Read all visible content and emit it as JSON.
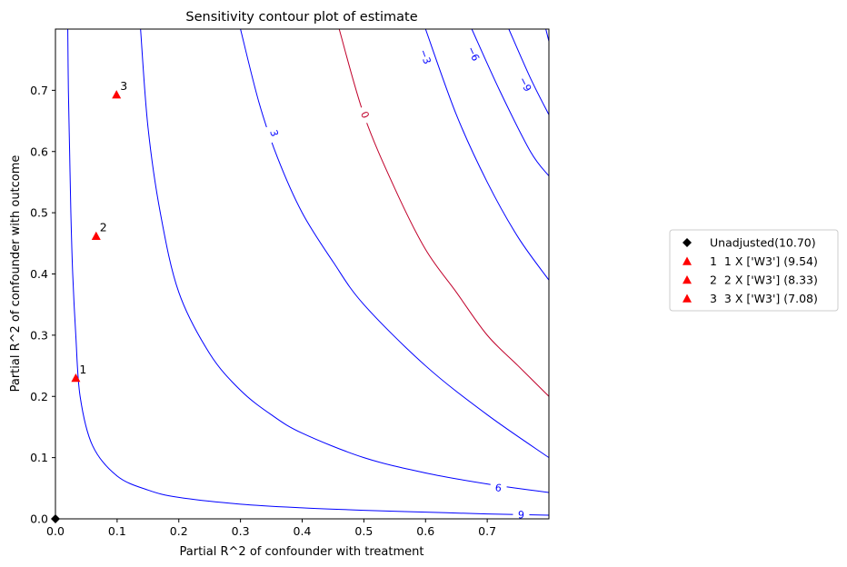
{
  "chart_data": {
    "type": "contour",
    "title": "Sensitivity contour plot of estimate",
    "xlabel": "Partial R^2 of confounder with treatment",
    "ylabel": "Partial R^2 of confounder with outcome",
    "xlim": [
      0,
      0.8
    ],
    "ylim": [
      0,
      0.8
    ],
    "x_ticks": [
      "0.0",
      "0.1",
      "0.2",
      "0.3",
      "0.4",
      "0.5",
      "0.6",
      "0.7"
    ],
    "y_ticks": [
      "0.0",
      "0.1",
      "0.2",
      "0.3",
      "0.4",
      "0.5",
      "0.6",
      "0.7"
    ],
    "grid": false,
    "contour_levels": [
      {
        "label": "9",
        "color": "#0000ff",
        "points": [
          [
            0.02,
            0.8
          ],
          [
            0.021,
            0.7
          ],
          [
            0.023,
            0.6
          ],
          [
            0.025,
            0.5
          ],
          [
            0.028,
            0.4
          ],
          [
            0.033,
            0.3
          ],
          [
            0.04,
            0.2
          ],
          [
            0.06,
            0.12
          ],
          [
            0.1,
            0.07
          ],
          [
            0.15,
            0.047
          ],
          [
            0.2,
            0.035
          ],
          [
            0.3,
            0.024
          ],
          [
            0.4,
            0.018
          ],
          [
            0.5,
            0.014
          ],
          [
            0.6,
            0.011
          ],
          [
            0.7,
            0.008
          ],
          [
            0.8,
            0.006
          ]
        ],
        "label_at": [
          0.755,
          0.007
        ]
      },
      {
        "label": "6",
        "color": "#0000ff",
        "points": [
          [
            0.138,
            0.8
          ],
          [
            0.15,
            0.64
          ],
          [
            0.17,
            0.5
          ],
          [
            0.2,
            0.37
          ],
          [
            0.25,
            0.27
          ],
          [
            0.3,
            0.21
          ],
          [
            0.35,
            0.17
          ],
          [
            0.4,
            0.14
          ],
          [
            0.5,
            0.1
          ],
          [
            0.6,
            0.075
          ],
          [
            0.7,
            0.057
          ],
          [
            0.8,
            0.043
          ]
        ],
        "label_at": [
          0.718,
          0.051
        ]
      },
      {
        "label": "3",
        "color": "#0000ff",
        "points": [
          [
            0.3,
            0.8
          ],
          [
            0.33,
            0.68
          ],
          [
            0.36,
            0.59
          ],
          [
            0.4,
            0.5
          ],
          [
            0.45,
            0.42
          ],
          [
            0.5,
            0.35
          ],
          [
            0.6,
            0.25
          ],
          [
            0.7,
            0.17
          ],
          [
            0.8,
            0.1
          ]
        ],
        "label_at": [
          0.355,
          0.63
        ]
      },
      {
        "label": "0",
        "color": "#c0002a",
        "points": [
          [
            0.46,
            0.8
          ],
          [
            0.5,
            0.66
          ],
          [
            0.55,
            0.54
          ],
          [
            0.6,
            0.44
          ],
          [
            0.65,
            0.37
          ],
          [
            0.7,
            0.3
          ],
          [
            0.75,
            0.25
          ],
          [
            0.8,
            0.2
          ]
        ],
        "label_at": [
          0.502,
          0.66
        ]
      },
      {
        "label": "−3",
        "color": "#0000ff",
        "points": [
          [
            0.6,
            0.8
          ],
          [
            0.65,
            0.66
          ],
          [
            0.7,
            0.55
          ],
          [
            0.75,
            0.46
          ],
          [
            0.8,
            0.39
          ]
        ],
        "label_at": [
          0.6,
          0.755
        ]
      },
      {
        "label": "−6",
        "color": "#0000ff",
        "points": [
          [
            0.675,
            0.8
          ],
          [
            0.72,
            0.7
          ],
          [
            0.77,
            0.6
          ],
          [
            0.8,
            0.56
          ]
        ],
        "label_at": [
          0.678,
          0.76
        ]
      },
      {
        "label": "−9",
        "color": "#0000ff",
        "points": [
          [
            0.735,
            0.8
          ],
          [
            0.77,
            0.72
          ],
          [
            0.8,
            0.66
          ]
        ],
        "label_at": [
          0.762,
          0.71
        ]
      },
      {
        "label": "",
        "color": "#0000ff",
        "points": [
          [
            0.795,
            0.8
          ],
          [
            0.8,
            0.78
          ]
        ],
        "label_at": null
      }
    ],
    "points": [
      {
        "label": "",
        "x": 0.0,
        "y": 0.0,
        "marker": "diamond",
        "color": "#000000"
      },
      {
        "label": "1",
        "x": 0.033,
        "y": 0.23,
        "marker": "triangle",
        "color": "#ff0000"
      },
      {
        "label": "2",
        "x": 0.066,
        "y": 0.462,
        "marker": "triangle",
        "color": "#ff0000"
      },
      {
        "label": "3",
        "x": 0.099,
        "y": 0.693,
        "marker": "triangle",
        "color": "#ff0000"
      }
    ],
    "legend": {
      "placement": "right",
      "entries": [
        {
          "label": "Unadjusted(10.70)",
          "marker": "diamond",
          "color": "#000000"
        },
        {
          "label": "1  1 X ['W3'] (9.54)",
          "marker": "triangle",
          "color": "#ff0000"
        },
        {
          "label": "2  2 X ['W3'] (8.33)",
          "marker": "triangle",
          "color": "#ff0000"
        },
        {
          "label": "3  3 X ['W3'] (7.08)",
          "marker": "triangle",
          "color": "#ff0000"
        }
      ]
    }
  }
}
